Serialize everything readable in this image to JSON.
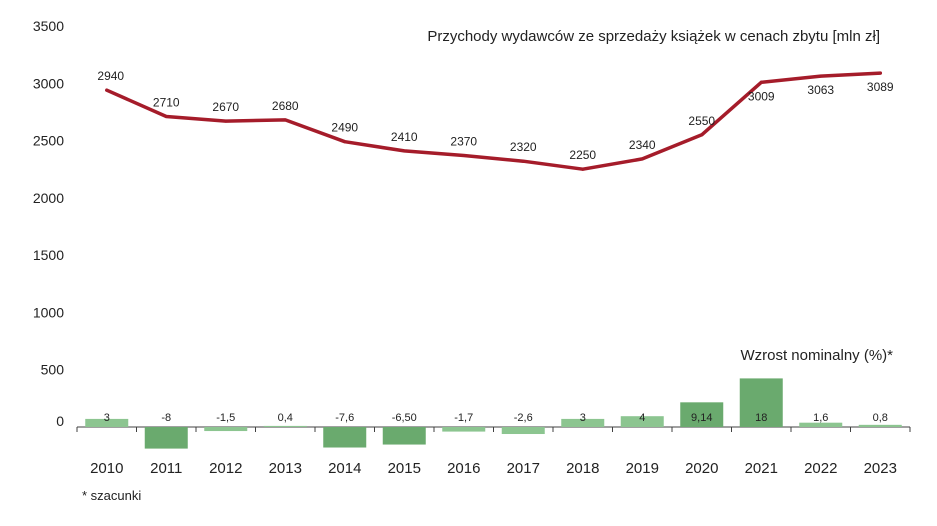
{
  "chart_data": {
    "type": "bar+line",
    "title": "Przychody wydawców ze sprzedaży książek w cenach zbytu [mln zł]",
    "bar_title": "Wzrost nominalny (%)*",
    "footnote": "* szacunki",
    "categories": [
      "2010",
      "2011",
      "2012",
      "2013",
      "2014",
      "2015",
      "2016",
      "2017",
      "2018",
      "2019",
      "2020",
      "2021",
      "2022",
      "2023"
    ],
    "y_ticks": [
      "0",
      "500",
      "1000",
      "1500",
      "2000",
      "2500",
      "3000",
      "3500"
    ],
    "ylim": [
      0,
      3500
    ],
    "revenue": {
      "name": "Przychody wydawców",
      "values": [
        2940,
        2710,
        2670,
        2680,
        2490,
        2410,
        2370,
        2320,
        2250,
        2340,
        2550,
        3009,
        3063,
        3089
      ],
      "labels": [
        "2940",
        "2710",
        "2670",
        "2680",
        "2490",
        "2410",
        "2370",
        "2320",
        "2250",
        "2340",
        "2550",
        "3009",
        "3063",
        "3089"
      ],
      "color": "#a51c2a"
    },
    "growth": {
      "name": "Wzrost nominalny",
      "values": [
        3,
        -8,
        -1.5,
        0.4,
        -7.6,
        -6.5,
        -1.7,
        -2.6,
        3,
        4,
        9.14,
        18,
        1.6,
        0.8
      ],
      "labels": [
        "3",
        "-8",
        "-1,5",
        "0,4",
        "-7,6",
        "-6,50",
        "-1,7",
        "-2,6",
        "3",
        "4",
        "9,14",
        "18",
        "1,6",
        "0,8"
      ],
      "color_dark": "#6aaa6e",
      "color_light": "#8cc590"
    }
  }
}
